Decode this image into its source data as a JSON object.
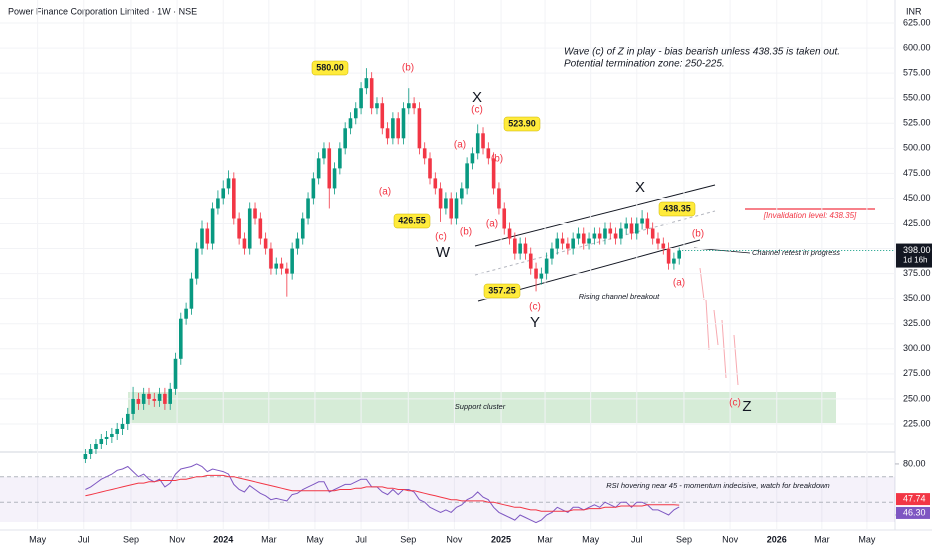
{
  "title": "Power Finance Corporation Limited · 1W · NSE",
  "currency": "INR",
  "chart_data": [
    {
      "type": "candlestick",
      "up_color": "#089981",
      "down_color": "#f23645",
      "categories": [
        null,
        null,
        null,
        null,
        null,
        null,
        null,
        null,
        null,
        null,
        null,
        null,
        null,
        null,
        null,
        null,
        null,
        null,
        null,
        null,
        null,
        null,
        null,
        null,
        null,
        null,
        null,
        null,
        null,
        null,
        null,
        null,
        null,
        null,
        null,
        null,
        null,
        null,
        null,
        null,
        null,
        null,
        null,
        null,
        null,
        null,
        null,
        null,
        null,
        null,
        null,
        null,
        null,
        null,
        null,
        null,
        null,
        null,
        null,
        null,
        null,
        null,
        null,
        null,
        null,
        null,
        null,
        null,
        null,
        null,
        null,
        null,
        null,
        null,
        null,
        null,
        null,
        null,
        null,
        null,
        null,
        null,
        null,
        null,
        null,
        null,
        null,
        null,
        null,
        null,
        null,
        null,
        null,
        null,
        null,
        null,
        null,
        null,
        null,
        null,
        null,
        null,
        null,
        null,
        null,
        null,
        null,
        null,
        null,
        null,
        null,
        null,
        null
      ],
      "ohlc": [
        [
          190,
          200,
          186,
          195
        ],
        [
          195,
          205,
          190,
          200
        ],
        [
          200,
          210,
          195,
          205
        ],
        [
          205,
          215,
          200,
          210
        ],
        [
          210,
          218,
          204,
          212
        ],
        [
          212,
          221,
          206,
          215
        ],
        [
          215,
          226,
          209,
          220
        ],
        [
          220,
          231,
          214,
          225
        ],
        [
          225,
          241,
          219,
          235
        ],
        [
          235,
          262,
          229,
          250
        ],
        [
          250,
          256,
          239,
          245
        ],
        [
          245,
          261,
          239,
          255
        ],
        [
          255,
          261,
          244,
          250
        ],
        [
          250,
          256,
          242,
          248
        ],
        [
          248,
          261,
          242,
          255
        ],
        [
          255,
          261,
          239,
          245
        ],
        [
          245,
          266,
          239,
          260
        ],
        [
          260,
          296,
          254,
          290
        ],
        [
          290,
          336,
          284,
          330
        ],
        [
          330,
          346,
          324,
          340
        ],
        [
          340,
          376,
          334,
          370
        ],
        [
          370,
          406,
          364,
          400
        ],
        [
          400,
          428,
          394,
          420
        ],
        [
          420,
          426,
          399,
          405
        ],
        [
          405,
          446,
          399,
          440
        ],
        [
          440,
          458,
          434,
          450
        ],
        [
          450,
          468,
          444,
          460
        ],
        [
          460,
          478,
          454,
          470
        ],
        [
          470,
          476,
          424,
          430
        ],
        [
          430,
          436,
          404,
          410
        ],
        [
          410,
          416,
          394,
          400
        ],
        [
          400,
          446,
          394,
          440
        ],
        [
          440,
          446,
          424,
          430
        ],
        [
          430,
          436,
          404,
          410
        ],
        [
          410,
          416,
          394,
          400
        ],
        [
          400,
          406,
          374,
          380
        ],
        [
          380,
          391,
          374,
          385
        ],
        [
          385,
          391,
          374,
          380
        ],
        [
          380,
          386,
          352,
          375
        ],
        [
          375,
          406,
          369,
          400
        ],
        [
          400,
          416,
          394,
          410
        ],
        [
          410,
          436,
          404,
          430
        ],
        [
          430,
          456,
          424,
          450
        ],
        [
          450,
          476,
          444,
          470
        ],
        [
          470,
          496,
          464,
          490
        ],
        [
          490,
          506,
          484,
          500
        ],
        [
          500,
          506,
          440,
          460
        ],
        [
          460,
          486,
          454,
          480
        ],
        [
          480,
          506,
          474,
          500
        ],
        [
          500,
          526,
          494,
          520
        ],
        [
          520,
          536,
          514,
          530
        ],
        [
          530,
          546,
          524,
          540
        ],
        [
          540,
          566,
          534,
          560
        ],
        [
          560,
          580,
          554,
          570
        ],
        [
          570,
          576,
          534,
          540
        ],
        [
          540,
          551,
          534,
          545
        ],
        [
          545,
          551,
          514,
          520
        ],
        [
          520,
          526,
          504,
          510
        ],
        [
          510,
          536,
          504,
          530
        ],
        [
          530,
          536,
          504,
          510
        ],
        [
          510,
          546,
          504,
          540
        ],
        [
          540,
          560,
          534,
          545
        ],
        [
          545,
          551,
          534,
          540
        ],
        [
          540,
          546,
          494,
          500
        ],
        [
          500,
          506,
          484,
          490
        ],
        [
          490,
          496,
          464,
          470
        ],
        [
          470,
          476,
          454,
          460
        ],
        [
          460,
          466,
          426.55,
          440
        ],
        [
          440,
          456,
          434,
          450
        ],
        [
          450,
          456,
          424,
          430
        ],
        [
          430,
          456,
          424,
          450
        ],
        [
          450,
          466,
          444,
          460
        ],
        [
          460,
          491,
          454,
          485
        ],
        [
          485,
          501,
          479,
          495
        ],
        [
          495,
          523.9,
          489,
          515
        ],
        [
          515,
          521,
          494,
          500
        ],
        [
          500,
          506,
          484,
          490
        ],
        [
          490,
          496,
          454,
          460
        ],
        [
          460,
          466,
          434,
          440
        ],
        [
          440,
          446,
          414,
          420
        ],
        [
          420,
          426,
          404,
          410
        ],
        [
          410,
          416,
          389,
          395
        ],
        [
          395,
          411,
          389,
          405
        ],
        [
          405,
          411,
          389,
          395
        ],
        [
          395,
          401,
          374,
          380
        ],
        [
          380,
          386,
          357.25,
          370
        ],
        [
          370,
          381,
          364,
          375
        ],
        [
          375,
          396,
          369,
          390
        ],
        [
          390,
          406,
          384,
          400
        ],
        [
          400,
          416,
          394,
          410
        ],
        [
          410,
          416,
          399,
          405
        ],
        [
          405,
          411,
          394,
          400
        ],
        [
          400,
          416,
          394,
          410
        ],
        [
          410,
          421,
          404,
          415
        ],
        [
          415,
          421,
          399,
          405
        ],
        [
          405,
          416,
          399,
          410
        ],
        [
          410,
          421,
          404,
          415
        ],
        [
          415,
          421,
          404,
          410
        ],
        [
          410,
          426,
          404,
          420
        ],
        [
          420,
          426,
          409,
          415
        ],
        [
          415,
          421,
          404,
          410
        ],
        [
          410,
          426,
          404,
          420
        ],
        [
          420,
          431,
          414,
          425
        ],
        [
          425,
          431,
          409,
          415
        ],
        [
          415,
          431,
          409,
          425
        ],
        [
          425,
          438.35,
          419,
          430
        ],
        [
          430,
          436,
          414,
          420
        ],
        [
          420,
          426,
          404,
          410
        ],
        [
          410,
          416,
          399,
          405
        ],
        [
          405,
          411,
          394,
          400
        ],
        [
          400,
          406,
          379,
          385
        ],
        [
          385,
          396,
          379,
          390
        ],
        [
          390,
          401,
          384,
          398
        ]
      ],
      "last_label": "398.00",
      "countdown": "1d 16h",
      "xlim": [
        -16.1,
        152.7
      ],
      "xticks": [
        {
          "value": -9,
          "label": "May"
        },
        {
          "value": -0.3,
          "label": "Jul"
        },
        {
          "value": 8.6,
          "label": "Sep"
        },
        {
          "value": 17.3,
          "label": "Nov"
        },
        {
          "value": 26,
          "label": "2024"
        },
        {
          "value": 34.6,
          "label": "Mar"
        },
        {
          "value": 43.3,
          "label": "May"
        },
        {
          "value": 52,
          "label": "Jul"
        },
        {
          "value": 60.9,
          "label": "Sep"
        },
        {
          "value": 69.6,
          "label": "Nov"
        },
        {
          "value": 78.4,
          "label": "2025"
        },
        {
          "value": 86.7,
          "label": "Mar"
        },
        {
          "value": 95.3,
          "label": "May"
        },
        {
          "value": 104,
          "label": "Jul"
        },
        {
          "value": 112.9,
          "label": "Sep"
        },
        {
          "value": 121.6,
          "label": "Nov"
        },
        {
          "value": 130.4,
          "label": "2026"
        },
        {
          "value": 138.9,
          "label": "Mar"
        },
        {
          "value": 147.4,
          "label": "May"
        }
      ],
      "ylim": [
        201,
        648
      ],
      "yticks": [
        {
          "value": 625,
          "label": "625.00"
        },
        {
          "value": 600,
          "label": "600.00"
        },
        {
          "value": 575,
          "label": "575.00"
        },
        {
          "value": 550,
          "label": "550.00"
        },
        {
          "value": 525,
          "label": "525.00"
        },
        {
          "value": 500,
          "label": "500.00"
        },
        {
          "value": 475,
          "label": "475.00"
        },
        {
          "value": 450,
          "label": "450.00"
        },
        {
          "value": 425,
          "label": "425.00"
        },
        {
          "value": 400,
          "label": "400.00"
        },
        {
          "value": 375,
          "label": "375.00"
        },
        {
          "value": 350,
          "label": "350.00"
        },
        {
          "value": 325,
          "label": "325.00"
        },
        {
          "value": 300,
          "label": "300.00"
        },
        {
          "value": 275,
          "label": "275.00"
        },
        {
          "value": 250,
          "label": "250.00"
        },
        {
          "value": 225,
          "label": "225.00"
        }
      ],
      "grid": true,
      "annotations": [
        "(b)",
        "(a)",
        "(c)",
        "W",
        "(b)",
        "(a)",
        "(b)",
        "(c)",
        "X",
        "(a)",
        "(c)",
        "Y",
        "X",
        "(b)",
        "(a)",
        "(c)",
        "Z",
        "580.00",
        "523.90",
        "426.55",
        "357.25",
        "438.35",
        "Wave (c) of Z in play - bias bearish unless 438.35 is taken out.",
        "Potential termination zone: 250-225.",
        "[Invalidation level: 438.35]",
        "Channel retest in progress",
        "Rising channel breakout",
        "Support cluster",
        "RSI hovering near 45 - momentum indecisive, watch for breakdown"
      ]
    },
    {
      "type": "line",
      "series": [
        {
          "color": "#7e57c2",
          "last_label": "46.30",
          "values": [
            60,
            62,
            65,
            68,
            70,
            72,
            75,
            76,
            78,
            74,
            70,
            72,
            68,
            66,
            68,
            62,
            65,
            72,
            76,
            77,
            78,
            80,
            78,
            74,
            76,
            75,
            74,
            72,
            64,
            60,
            58,
            63,
            60,
            57,
            55,
            52,
            53,
            52,
            51,
            56,
            57,
            60,
            62,
            64,
            66,
            66,
            58,
            60,
            62,
            64,
            64,
            66,
            68,
            68,
            62,
            62,
            58,
            56,
            60,
            56,
            60,
            60,
            58,
            52,
            50,
            46,
            44,
            42,
            44,
            42,
            46,
            48,
            52,
            54,
            58,
            54,
            52,
            46,
            42,
            40,
            38,
            36,
            40,
            38,
            36,
            34,
            36,
            40,
            42,
            46,
            44,
            42,
            46,
            46,
            44,
            46,
            48,
            46,
            50,
            48,
            46,
            50,
            50,
            46,
            50,
            50,
            48,
            44,
            44,
            42,
            40,
            44,
            46.3
          ]
        },
        {
          "color": "#f23645",
          "last_label": "47.74",
          "values": [
            55,
            56,
            57,
            58,
            59,
            60,
            61,
            62,
            63,
            64,
            65,
            65,
            66,
            66,
            67,
            67,
            67,
            67,
            68,
            68,
            69,
            70,
            70,
            71,
            71,
            71,
            71,
            70,
            70,
            69,
            68,
            67,
            66,
            65,
            64,
            63,
            62,
            61,
            60,
            59,
            59,
            59,
            59,
            59,
            59,
            59,
            59,
            59,
            60,
            60,
            60,
            61,
            61,
            62,
            62,
            62,
            62,
            61,
            61,
            60,
            60,
            59,
            59,
            58,
            57,
            56,
            55,
            54,
            53,
            52,
            52,
            51,
            51,
            51,
            51,
            51,
            50,
            50,
            49,
            48,
            47,
            46,
            46,
            45,
            44,
            44,
            43,
            43,
            43,
            43,
            43,
            43,
            44,
            44,
            44,
            45,
            45,
            45,
            46,
            46,
            46,
            47,
            47,
            47,
            47,
            47,
            48,
            48,
            48,
            48,
            48,
            48,
            47.74
          ]
        }
      ],
      "ylim": [
        34.5,
        87
      ],
      "yticks": [
        {
          "value": 80,
          "label": "80.00"
        },
        {
          "value": 40,
          "label": "40.00"
        }
      ],
      "levels": [
        70,
        50
      ]
    }
  ]
}
